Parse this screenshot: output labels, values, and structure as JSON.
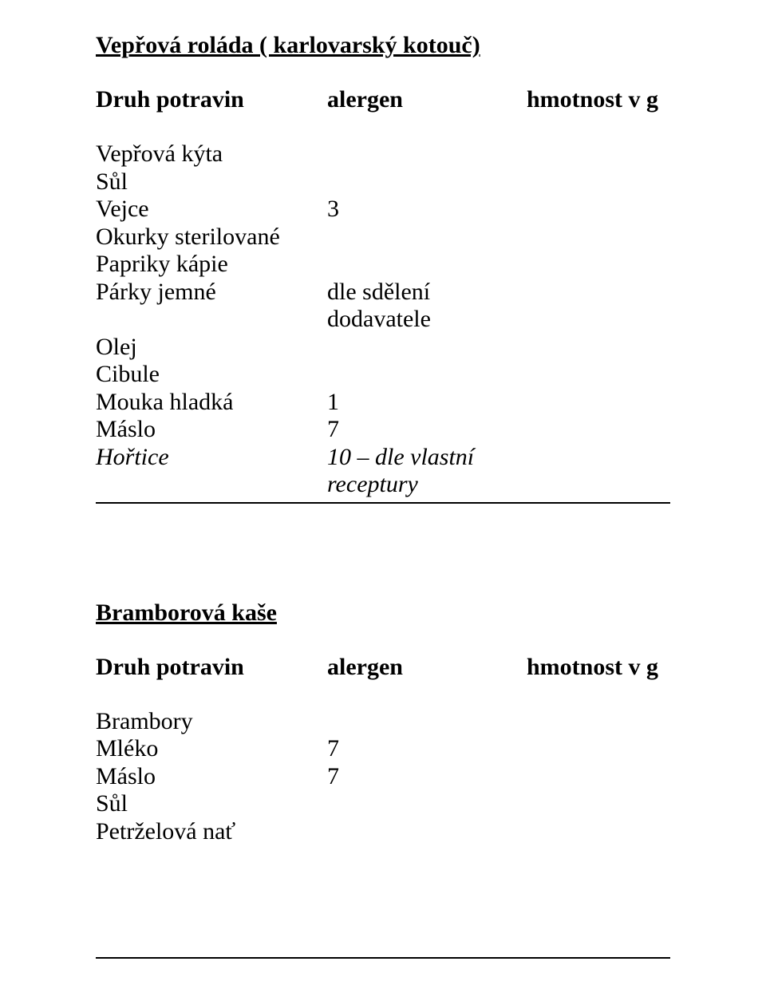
{
  "recipe1": {
    "title": "Vepřová roláda ( karlovarský kotouč)",
    "header": {
      "name": "Druh potravin",
      "allergen": "alergen",
      "weight": "hmotnost v g"
    },
    "ingredients": [
      {
        "name": "Vepřová kýta",
        "allergen": "",
        "italic": false
      },
      {
        "name": "Sůl",
        "allergen": "",
        "italic": false
      },
      {
        "name": "Vejce",
        "allergen": "3",
        "italic": false
      },
      {
        "name": "Okurky sterilované",
        "allergen": "",
        "italic": false
      },
      {
        "name": "Papriky kápie",
        "allergen": "",
        "italic": false
      },
      {
        "name": "Párky jemné",
        "allergen": "dle sdělení dodavatele",
        "italic": false
      },
      {
        "name": "Olej",
        "allergen": "",
        "italic": false
      },
      {
        "name": "Cibule",
        "allergen": "",
        "italic": false
      },
      {
        "name": "Mouka hladká",
        "allergen": " 1",
        "italic": false
      },
      {
        "name": "Máslo",
        "allergen": " 7",
        "italic": false
      },
      {
        "name": "Hořtice",
        "allergen": " 10 – dle vlastní receptury",
        "italic": true
      }
    ]
  },
  "recipe2": {
    "title": "Bramborová kaše",
    "header": {
      "name": "Druh potravin",
      "allergen": "alergen",
      "weight": "hmotnost v g"
    },
    "ingredients": [
      {
        "name": "Brambory",
        "allergen": "",
        "italic": false
      },
      {
        "name": "Mléko",
        "allergen": " 7",
        "italic": false
      },
      {
        "name": "Máslo",
        "allergen": " 7",
        "italic": false
      },
      {
        "name": "Sůl",
        "allergen": "",
        "italic": false
      },
      {
        "name": "Petrželová nať",
        "allergen": "",
        "italic": false
      }
    ]
  },
  "colors": {
    "text": "#000000",
    "background": "#ffffff"
  }
}
